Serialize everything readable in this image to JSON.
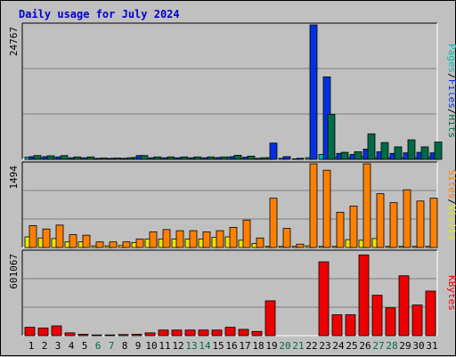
{
  "title": "Daily usage for July 2024",
  "colors": {
    "background": "#c0c0c0",
    "title": "#0000cc",
    "hits": "#006b45",
    "files": "#0033dd",
    "pages": "#00bbbb",
    "visits": "#e8e800",
    "sites": "#ff8000",
    "kbytes": "#ee0000",
    "weekend_label": "#006b45",
    "weekday_label": "#000000"
  },
  "chart_data": [
    {
      "type": "bar",
      "name": "hits-files-pages",
      "categories": [
        "1",
        "2",
        "3",
        "4",
        "5",
        "6",
        "7",
        "8",
        "9",
        "10",
        "11",
        "12",
        "13",
        "14",
        "15",
        "16",
        "17",
        "18",
        "19",
        "20",
        "21",
        "22",
        "23",
        "24",
        "25",
        "26",
        "27",
        "28",
        "29",
        "30",
        "31"
      ],
      "ymax": 24767,
      "ytick_label": "24767",
      "series": [
        {
          "name": "Pages",
          "color": "#00bbbb",
          "values": [
            400,
            300,
            350,
            200,
            200,
            100,
            100,
            150,
            350,
            200,
            200,
            200,
            200,
            200,
            200,
            400,
            300,
            150,
            300,
            200,
            100,
            300,
            900,
            400,
            300,
            500,
            300,
            300,
            300,
            300,
            400
          ]
        },
        {
          "name": "Files",
          "color": "#0033dd",
          "values": [
            500,
            500,
            450,
            300,
            300,
            200,
            200,
            200,
            700,
            300,
            300,
            300,
            300,
            300,
            350,
            500,
            400,
            200,
            3000,
            500,
            200,
            24767,
            15200,
            1100,
            900,
            1900,
            1400,
            1100,
            1200,
            1300,
            1200
          ]
        },
        {
          "name": "Hits",
          "color": "#006b45",
          "values": [
            700,
            650,
            700,
            450,
            450,
            250,
            250,
            300,
            700,
            450,
            450,
            450,
            450,
            450,
            450,
            750,
            600,
            300,
            0,
            0,
            0,
            0,
            8300,
            1300,
            1400,
            4700,
            3100,
            2300,
            3600,
            2300,
            3200
          ]
        }
      ],
      "legend": [
        "Pages",
        "/",
        "Files",
        "/",
        "Hits"
      ]
    },
    {
      "type": "bar",
      "name": "visits-sites",
      "categories": [
        "1",
        "2",
        "3",
        "4",
        "5",
        "6",
        "7",
        "8",
        "9",
        "10",
        "11",
        "12",
        "13",
        "14",
        "15",
        "16",
        "17",
        "18",
        "19",
        "20",
        "21",
        "22",
        "23",
        "24",
        "25",
        "26",
        "27",
        "28",
        "29",
        "30",
        "31"
      ],
      "ymax": 1494,
      "ytick_label": "1494",
      "series": [
        {
          "name": "Visits",
          "color": "#e8e800",
          "values": [
            190,
            170,
            160,
            100,
            100,
            30,
            30,
            35,
            90,
            150,
            150,
            150,
            150,
            150,
            180,
            190,
            130,
            70,
            20,
            20,
            20,
            30,
            20,
            20,
            140,
            130,
            160,
            20,
            20,
            20,
            20
          ]
        },
        {
          "name": "Sites",
          "color": "#ff8000",
          "values": [
            390,
            330,
            400,
            230,
            220,
            100,
            100,
            100,
            150,
            280,
            320,
            300,
            300,
            280,
            300,
            360,
            490,
            170,
            880,
            340,
            60,
            1494,
            1380,
            630,
            740,
            1494,
            960,
            800,
            1030,
            830,
            880
          ]
        }
      ],
      "legend": [
        "Sites",
        "/",
        "Visits"
      ]
    },
    {
      "type": "bar",
      "name": "kbytes",
      "categories": [
        "1",
        "2",
        "3",
        "4",
        "5",
        "6",
        "7",
        "8",
        "9",
        "10",
        "11",
        "12",
        "13",
        "14",
        "15",
        "16",
        "17",
        "18",
        "19",
        "20",
        "21",
        "22",
        "23",
        "24",
        "25",
        "26",
        "27",
        "28",
        "29",
        "30",
        "31"
      ],
      "ymax": 601067,
      "ytick_label": "601067",
      "series": [
        {
          "name": "KBytes",
          "color": "#ee0000",
          "values": [
            60000,
            55000,
            70000,
            20000,
            10000,
            5000,
            5000,
            8000,
            10000,
            20000,
            40000,
            40000,
            40000,
            40000,
            40000,
            60000,
            45000,
            30000,
            250000,
            0,
            0,
            0,
            530000,
            150000,
            150000,
            580000,
            290000,
            200000,
            430000,
            220000,
            320000
          ]
        }
      ],
      "legend": [
        "KBytes"
      ]
    }
  ],
  "x_labels": [
    {
      "label": "1",
      "weekend": false
    },
    {
      "label": "2",
      "weekend": false
    },
    {
      "label": "3",
      "weekend": false
    },
    {
      "label": "4",
      "weekend": false
    },
    {
      "label": "5",
      "weekend": false
    },
    {
      "label": "6",
      "weekend": true
    },
    {
      "label": "7",
      "weekend": true
    },
    {
      "label": "8",
      "weekend": false
    },
    {
      "label": "9",
      "weekend": false
    },
    {
      "label": "10",
      "weekend": false
    },
    {
      "label": "11",
      "weekend": false
    },
    {
      "label": "12",
      "weekend": false
    },
    {
      "label": "13",
      "weekend": true
    },
    {
      "label": "14",
      "weekend": true
    },
    {
      "label": "15",
      "weekend": false
    },
    {
      "label": "16",
      "weekend": false
    },
    {
      "label": "17",
      "weekend": false
    },
    {
      "label": "18",
      "weekend": false
    },
    {
      "label": "19",
      "weekend": false
    },
    {
      "label": "20",
      "weekend": true
    },
    {
      "label": "21",
      "weekend": true
    },
    {
      "label": "22",
      "weekend": false
    },
    {
      "label": "23",
      "weekend": false
    },
    {
      "label": "24",
      "weekend": false
    },
    {
      "label": "25",
      "weekend": false
    },
    {
      "label": "26",
      "weekend": false
    },
    {
      "label": "27",
      "weekend": true
    },
    {
      "label": "28",
      "weekend": true
    },
    {
      "label": "29",
      "weekend": false
    },
    {
      "label": "30",
      "weekend": false
    },
    {
      "label": "31",
      "weekend": false
    }
  ]
}
